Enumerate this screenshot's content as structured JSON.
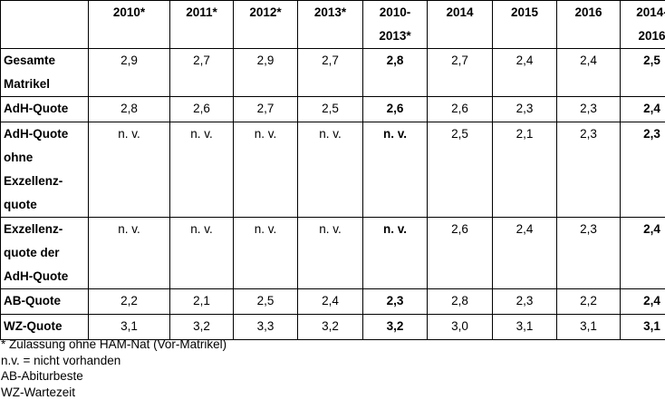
{
  "table": {
    "corner": "",
    "columns": [
      "2010*",
      "2011*",
      "2012*",
      "2013*",
      "2010-2013*",
      "2014",
      "2015",
      "2016",
      "2014-2016"
    ],
    "rows": [
      {
        "label": "Gesamte Matrikel",
        "values": [
          "2,9",
          "2,7",
          "2,9",
          "2,7",
          "2,8",
          "2,7",
          "2,4",
          "2,4",
          "2,5"
        ]
      },
      {
        "label": "AdH-Quote",
        "values": [
          "2,8",
          "2,6",
          "2,7",
          "2,5",
          "2,6",
          "2,6",
          "2,3",
          "2,3",
          "2,4"
        ]
      },
      {
        "label": "AdH-Quote ohne Exzellenz-quote",
        "values": [
          "n. v.",
          "n. v.",
          "n. v.",
          "n. v.",
          "n. v.",
          "2,5",
          "2,1",
          "2,3",
          "2,3"
        ]
      },
      {
        "label": "Exzellenz-quote der AdH-Quote",
        "values": [
          "n. v.",
          "n. v.",
          "n. v.",
          "n. v.",
          "n. v.",
          "2,6",
          "2,4",
          "2,3",
          "2,4"
        ]
      },
      {
        "label": "AB-Quote",
        "values": [
          "2,2",
          "2,1",
          "2,5",
          "2,4",
          "2,3",
          "2,8",
          "2,3",
          "2,2",
          "2,4"
        ]
      },
      {
        "label": "WZ-Quote",
        "values": [
          "3,1",
          "3,2",
          "3,3",
          "3,2",
          "3,2",
          "3,0",
          "3,1",
          "3,1",
          "3,1"
        ]
      }
    ],
    "bold_columns": [
      4,
      8
    ]
  },
  "notes": [
    "* Zulassung ohne HAM-Nat (Vor-Matrikel)",
    "n.v. = nicht vorhanden",
    "AB-Abiturbeste",
    "WZ-Wartezeit"
  ]
}
